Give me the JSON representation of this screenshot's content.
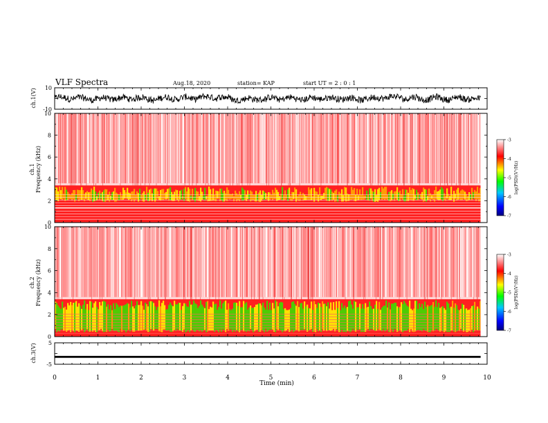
{
  "header": {
    "title": "VLF Spectra",
    "date": "Aug.18, 2020",
    "station": "station= KAP",
    "start": "start  UT =   2 : 0  : 1"
  },
  "colors": {
    "background": "#ffffff",
    "trace": "#000000",
    "spectrogram_high": "#ff0000",
    "spectrogram_mid": "#ffff00",
    "spectrogram_low": "#00ff00"
  },
  "chart_data": [
    {
      "type": "line",
      "id": "ch1-waveform",
      "ylabel": "ch.1(V)",
      "ylim": [
        -10,
        10
      ],
      "ytick_labels": [
        "10",
        "-10"
      ],
      "xlim": [
        0,
        10
      ],
      "series": [
        {
          "values_description": "noisy waveform roughly between -4 and 4 V over 0–9.85 min"
        }
      ]
    },
    {
      "type": "heatmap",
      "id": "ch1-spectrogram",
      "ylabel": "ch.1\nFrequency (kHz)",
      "ylim": [
        0,
        10
      ],
      "yticks": [
        0,
        2,
        4,
        6,
        8,
        10
      ],
      "xlim": [
        0,
        10
      ],
      "colorbar": {
        "label": "log(PSD)(V²/Hz)",
        "range": [
          -7,
          -3
        ],
        "ticks": [
          -3,
          -4,
          -5,
          -6,
          -7
        ]
      }
    },
    {
      "type": "heatmap",
      "id": "ch2-spectrogram",
      "ylabel": "ch.2\nFrequency (kHz)",
      "ylim": [
        0,
        10
      ],
      "yticks": [
        0,
        2,
        4,
        6,
        8,
        10
      ],
      "xlim": [
        0,
        10
      ],
      "colorbar": {
        "label": "log(PSD)(V²/Hz)",
        "range": [
          -7,
          -3
        ],
        "ticks": [
          -3,
          -4,
          -5,
          -6,
          -7
        ]
      }
    },
    {
      "type": "line",
      "id": "ch3-waveform",
      "ylabel": "ch.3(V)",
      "ylim": [
        -5,
        5
      ],
      "ytick_labels": [
        "5",
        "-5"
      ],
      "xlim": [
        0,
        10
      ],
      "series": [
        {
          "values_description": "nearly constant thick trace around -1.5 V"
        }
      ]
    }
  ],
  "xaxis": {
    "label": "Time (min)",
    "ticks": [
      "0",
      "1",
      "2",
      "3",
      "4",
      "5",
      "6",
      "7",
      "8",
      "9",
      "10"
    ]
  }
}
